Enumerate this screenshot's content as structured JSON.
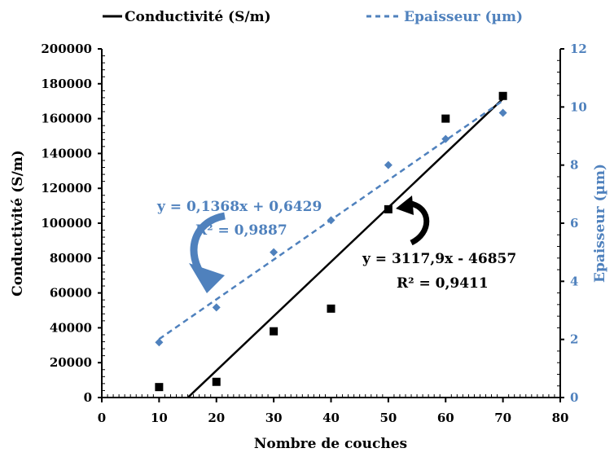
{
  "chart_data": {
    "type": "scatter",
    "x_axis": {
      "label": "Nombre de couches",
      "range": [
        0,
        80
      ],
      "ticks": [
        0,
        10,
        20,
        30,
        40,
        50,
        60,
        70,
        80
      ]
    },
    "y_axis_left": {
      "label": "Conductivité (S/m)",
      "range": [
        0,
        200000
      ],
      "ticks": [
        0,
        20000,
        40000,
        60000,
        80000,
        100000,
        120000,
        140000,
        160000,
        180000,
        200000
      ]
    },
    "y_axis_right": {
      "label": "Epaisseur (µm)",
      "range": [
        0,
        12
      ],
      "ticks": [
        0,
        2,
        4,
        6,
        8,
        10,
        12
      ]
    },
    "grid": false,
    "legend_position": "top",
    "series": [
      {
        "name": "Conductivité (S/m)",
        "axis": "left",
        "color": "#000000",
        "marker": "square",
        "line_style": "solid",
        "x": [
          10,
          20,
          30,
          40,
          50,
          60,
          70
        ],
        "y": [
          6000,
          9000,
          38000,
          51000,
          108000,
          160000,
          173000
        ],
        "trendline": {
          "slope": 3117.9,
          "intercept": -46857,
          "x_range": [
            15,
            70
          ],
          "equation": "y = 3117,9x - 46857",
          "r2": "R² = 0,9411"
        }
      },
      {
        "name": "Epaisseur (µm)",
        "axis": "right",
        "color": "#4f81bd",
        "marker": "diamond",
        "line_style": "dashed",
        "x": [
          10,
          20,
          30,
          40,
          50,
          60,
          70
        ],
        "y": [
          1.9,
          3.1,
          5.0,
          6.1,
          8.0,
          8.9,
          9.8
        ],
        "trendline": {
          "slope": 0.1368,
          "intercept": 0.6429,
          "x_range": [
            10,
            70
          ],
          "equation": "y = 0,1368x + 0,6429",
          "r2": "R² = 0,9887"
        }
      }
    ]
  }
}
